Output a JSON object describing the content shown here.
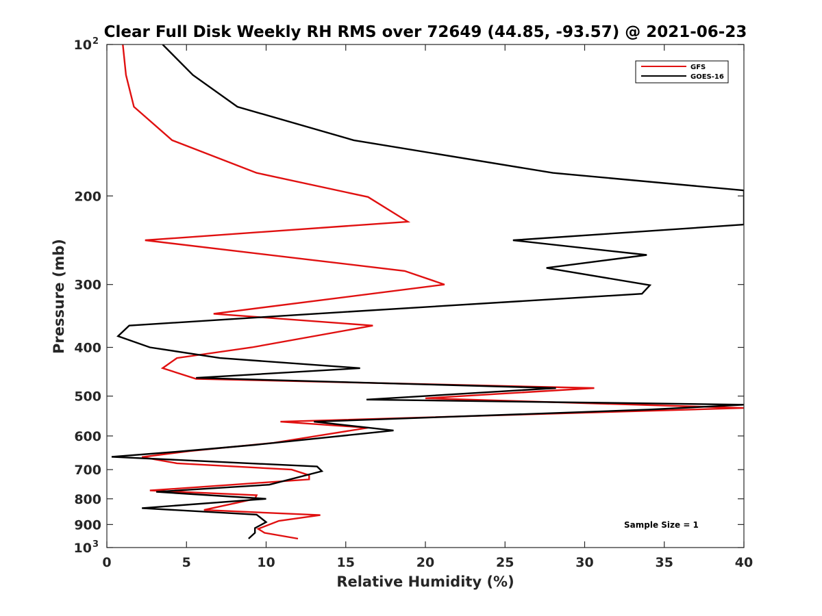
{
  "chart_data": {
    "type": "line",
    "title": "Clear Full Disk Weekly RH RMS over 72649 (44.85, -93.57) @ 2021-06-23",
    "xlabel": "Relative Humidity (%)",
    "ylabel": "Pressure (mb)",
    "xlim": [
      0,
      40
    ],
    "ylim": [
      100,
      1000
    ],
    "y_scale": "log",
    "y_reversed": true,
    "grid": false,
    "legend_position": "top-right",
    "x_ticks": [
      "0",
      "5",
      "10",
      "15",
      "20",
      "25",
      "30",
      "35",
      "40"
    ],
    "y_ticks": [
      {
        "base": "10",
        "exp": "2"
      },
      {
        "base": "200"
      },
      {
        "base": "300"
      },
      {
        "base": "400"
      },
      {
        "base": "500"
      },
      {
        "base": "600"
      },
      {
        "base": "700"
      },
      {
        "base": "800"
      },
      {
        "base": "900"
      },
      {
        "base": "10",
        "exp": "3"
      }
    ],
    "series": [
      {
        "name": "GFS",
        "color": "#e01010",
        "points": [
          [
            1.0,
            100
          ],
          [
            1.2,
            115
          ],
          [
            1.7,
            133
          ],
          [
            4.1,
            155
          ],
          [
            9.4,
            180
          ],
          [
            16.4,
            201
          ],
          [
            18.9,
            225
          ],
          [
            2.4,
            245
          ],
          [
            18.7,
            282
          ],
          [
            21.2,
            300
          ],
          [
            6.7,
            343
          ],
          [
            16.7,
            362
          ],
          [
            9.1,
            400
          ],
          [
            4.4,
            420
          ],
          [
            3.5,
            440
          ],
          [
            5.6,
            462
          ],
          [
            30.6,
            482
          ],
          [
            20.0,
            505
          ],
          [
            40.0,
            528
          ],
          [
            10.9,
            562
          ],
          [
            16.4,
            578
          ],
          [
            10.5,
            619
          ],
          [
            5.2,
            643
          ],
          [
            2.2,
            661
          ],
          [
            4.4,
            680
          ],
          [
            11.6,
            700
          ],
          [
            12.7,
            718
          ],
          [
            12.7,
            732
          ],
          [
            2.7,
            770
          ],
          [
            9.4,
            787
          ],
          [
            9.3,
            800
          ],
          [
            6.1,
            842
          ],
          [
            13.4,
            862
          ],
          [
            10.8,
            885
          ],
          [
            9.5,
            918
          ],
          [
            9.9,
            935
          ],
          [
            12.0,
            960
          ]
        ]
      },
      {
        "name": "GOES-16",
        "color": "#000000",
        "points": [
          [
            3.5,
            100
          ],
          [
            5.4,
            115
          ],
          [
            8.2,
            133
          ],
          [
            15.5,
            155
          ],
          [
            28.0,
            180
          ],
          [
            40.0,
            195
          ],
          [
            40.0,
            228
          ],
          [
            25.5,
            245
          ],
          [
            33.9,
            262
          ],
          [
            27.6,
            278
          ],
          [
            34.1,
            301
          ],
          [
            33.6,
            313
          ],
          [
            13.1,
            343
          ],
          [
            1.4,
            362
          ],
          [
            0.7,
            380
          ],
          [
            2.7,
            400
          ],
          [
            7.1,
            420
          ],
          [
            15.9,
            440
          ],
          [
            5.6,
            460
          ],
          [
            28.2,
            482
          ],
          [
            16.3,
            508
          ],
          [
            40.0,
            520
          ],
          [
            34.0,
            532
          ],
          [
            13.0,
            562
          ],
          [
            18.0,
            585
          ],
          [
            9.3,
            625
          ],
          [
            4.4,
            645
          ],
          [
            0.3,
            660
          ],
          [
            13.2,
            690
          ],
          [
            13.5,
            705
          ],
          [
            10.2,
            750
          ],
          [
            3.1,
            775
          ],
          [
            10.0,
            800
          ],
          [
            2.2,
            835
          ],
          [
            9.4,
            860
          ],
          [
            10.0,
            890
          ],
          [
            9.3,
            915
          ],
          [
            9.3,
            935
          ],
          [
            8.9,
            960
          ]
        ]
      }
    ],
    "annotations": [
      "Sample Size = 1"
    ]
  }
}
